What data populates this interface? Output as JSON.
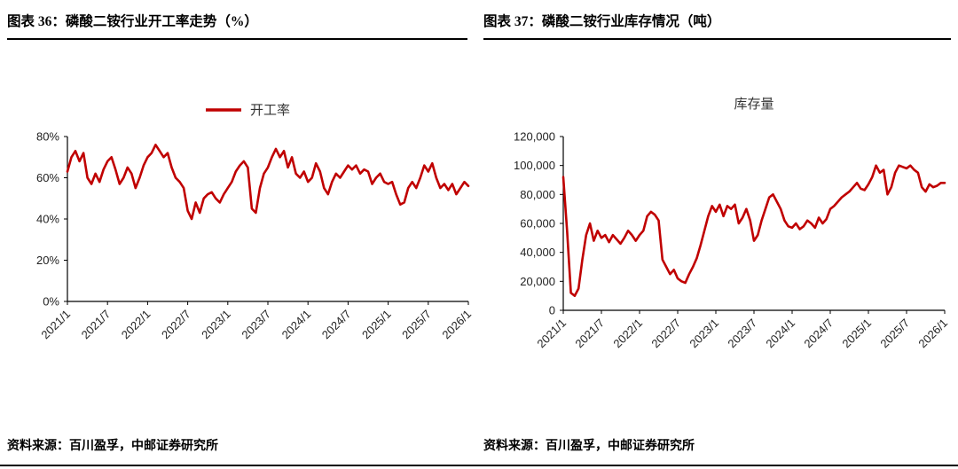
{
  "figures": [
    {
      "title": "图表 36：磷酸二铵行业开工率走势（%）",
      "source": "资料来源：百川盈孚，中邮证券研究所"
    },
    {
      "title": "图表 37：磷酸二铵行业库存情况（吨）",
      "source": "资料来源：百川盈孚，中邮证券研究所"
    }
  ],
  "colors": {
    "series_red": "#C00000",
    "axis_black": "#000000"
  },
  "chart_data": [
    {
      "id": "operating-rate",
      "type": "line",
      "title": "开工率",
      "legend": [
        "开工率"
      ],
      "legend_position": "top",
      "grid": false,
      "ylim": [
        0,
        80
      ],
      "unit": "%",
      "x_tick_labels": [
        "2021/1",
        "2021/7",
        "2022/1",
        "2022/7",
        "2023/1",
        "2023/7",
        "2024/1",
        "2024/7",
        "2025/1",
        "2025/7",
        "2026/1"
      ],
      "y_tick_labels": [
        "0%",
        "20%",
        "40%",
        "60%",
        "80%"
      ],
      "series": [
        {
          "name": "开工率",
          "color": "#C00000",
          "values": [
            63,
            70,
            73,
            68,
            72,
            60,
            57,
            62,
            58,
            64,
            68,
            70,
            64,
            57,
            60,
            65,
            62,
            55,
            60,
            66,
            70,
            72,
            76,
            73,
            70,
            72,
            65,
            60,
            58,
            55,
            44,
            40,
            48,
            43,
            50,
            52,
            53,
            50,
            48,
            52,
            55,
            58,
            63,
            66,
            68,
            65,
            45,
            43,
            55,
            62,
            65,
            70,
            74,
            70,
            73,
            65,
            70,
            62,
            60,
            63,
            58,
            60,
            67,
            63,
            55,
            52,
            58,
            62,
            60,
            63,
            66,
            64,
            66,
            62,
            64,
            63,
            57,
            60,
            62,
            58,
            57,
            58,
            52,
            47,
            48,
            55,
            58,
            55,
            60,
            66,
            63,
            67,
            60,
            55,
            57,
            54,
            57,
            52,
            55,
            58,
            56
          ]
        }
      ]
    },
    {
      "id": "inventory",
      "type": "line",
      "title": "库存量",
      "legend": [
        "库存量"
      ],
      "legend_position": "top",
      "grid": false,
      "ylim": [
        0,
        120000
      ],
      "unit": "吨",
      "x_tick_labels": [
        "2021/1",
        "2021/7",
        "2022/1",
        "2022/7",
        "2023/1",
        "2023/7",
        "2024/1",
        "2024/7",
        "2025/1",
        "2025/7",
        "2026/1"
      ],
      "y_tick_labels": [
        "0",
        "20,000",
        "40,000",
        "60,000",
        "80,000",
        "100,000",
        "120,000"
      ],
      "series": [
        {
          "name": "库存量",
          "color": "#C00000",
          "values": [
            92000,
            55000,
            12000,
            10000,
            15000,
            35000,
            52000,
            60000,
            48000,
            55000,
            50000,
            52000,
            47000,
            52000,
            49000,
            46000,
            50000,
            55000,
            52000,
            48000,
            52000,
            55000,
            65000,
            68000,
            66000,
            62000,
            35000,
            30000,
            25000,
            28000,
            22000,
            20000,
            19000,
            25000,
            30000,
            36000,
            45000,
            55000,
            65000,
            72000,
            68000,
            73000,
            65000,
            72000,
            70000,
            73000,
            60000,
            64000,
            70000,
            62000,
            48000,
            52000,
            62000,
            70000,
            78000,
            80000,
            75000,
            70000,
            62000,
            58000,
            57000,
            60000,
            56000,
            58000,
            62000,
            60000,
            57000,
            64000,
            60000,
            63000,
            70000,
            72000,
            75000,
            78000,
            80000,
            82000,
            85000,
            88000,
            84000,
            83000,
            87000,
            92000,
            100000,
            95000,
            97000,
            80000,
            85000,
            95000,
            100000,
            99000,
            98000,
            100000,
            97000,
            95000,
            85000,
            82000,
            87000,
            85000,
            86000,
            88000,
            88000
          ]
        }
      ]
    }
  ]
}
